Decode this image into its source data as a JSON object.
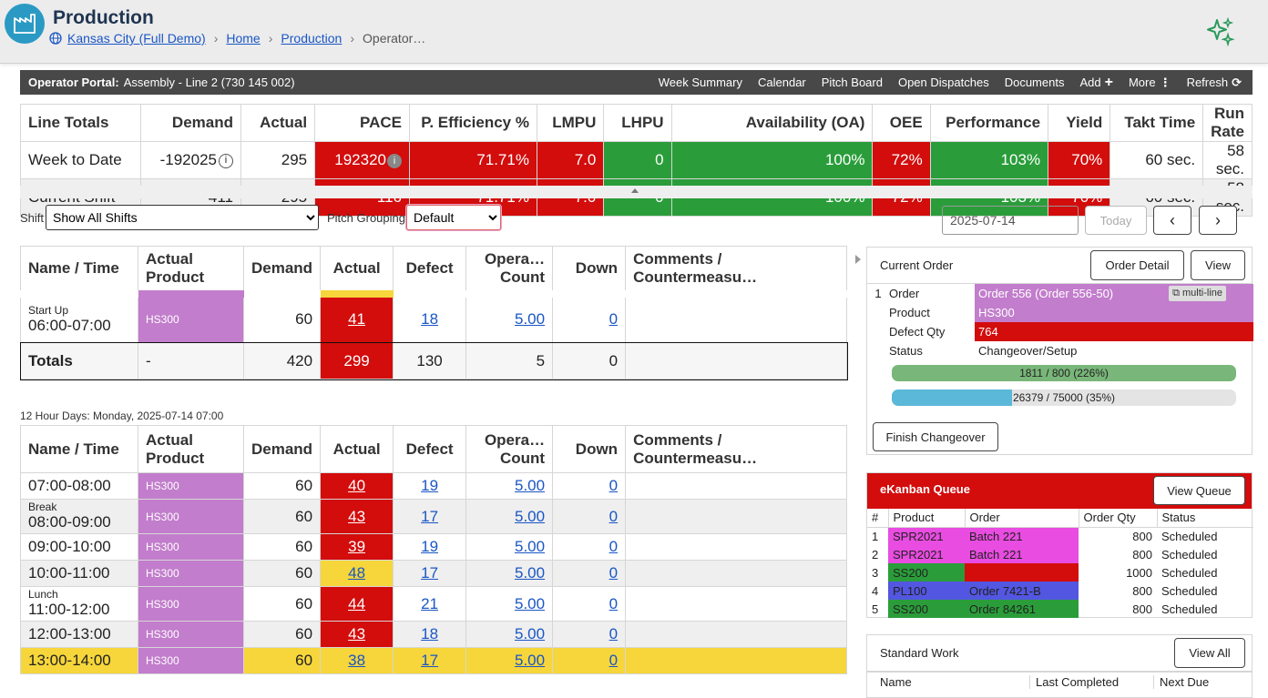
{
  "header": {
    "title": "Production",
    "breadcrumb": {
      "site": "Kansas City (Full Demo)",
      "home": "Home",
      "production": "Production",
      "current": "Operator…"
    }
  },
  "operator_bar": {
    "label": "Operator Portal:",
    "line": "Assembly - Line 2 (730 145 002)",
    "nav": {
      "week_summary": "Week Summary",
      "calendar": "Calendar",
      "pitch_board": "Pitch Board",
      "open_dispatches": "Open Dispatches",
      "documents": "Documents",
      "add": "Add",
      "more": "More",
      "refresh": "Refresh"
    }
  },
  "totals": {
    "headers": [
      "Line Totals",
      "Demand",
      "Actual",
      "PACE",
      "P. Efficiency %",
      "LMPU",
      "LHPU",
      "Availability (OA)",
      "OEE",
      "Performance",
      "Yield",
      "Takt Time",
      "Run Rate"
    ],
    "rows": [
      [
        "Week to Date",
        "-192025",
        "295",
        "192320",
        "71.71%",
        "7.0",
        "0",
        "100%",
        "72%",
        "103%",
        "70%",
        "60 sec.",
        "58 sec."
      ],
      [
        "Current Shift",
        "411",
        "295",
        "-116",
        "71.71%",
        "7.0",
        "0",
        "100%",
        "72%",
        "103%",
        "70%",
        "60 sec.",
        "58 sec."
      ]
    ]
  },
  "filters": {
    "shift_label": "Shift",
    "shift_value": "Show All Shifts",
    "pitch_label": "Pitch Grouping",
    "pitch_value": "Default",
    "date": "2025-07-14",
    "today": "Today"
  },
  "grid_headers": {
    "name": "Name / Time",
    "product": "Actual Product",
    "demand": "Demand",
    "actual": "Actual",
    "defect": "Defect",
    "operators": "Opera… Count",
    "down": "Down",
    "comments": "Comments / Countermeasu…"
  },
  "prev_shift": {
    "row": {
      "label": "Start Up",
      "time": "06:00-07:00",
      "product": "HS300",
      "demand": "60",
      "actual": "41",
      "defect": "18",
      "operators": "5.00",
      "down": "0"
    },
    "totals": {
      "label": "Totals",
      "product": "-",
      "demand": "420",
      "actual": "299",
      "defect": "130",
      "operators": "5",
      "down": "0"
    }
  },
  "section_label": "12 Hour Days: Monday, 2025-07-14 07:00",
  "shift_rows": [
    {
      "label": "",
      "time": "07:00-08:00",
      "product": "HS300",
      "demand": "60",
      "actual": "40",
      "defect": "19",
      "operators": "5.00",
      "down": "0",
      "status": "red"
    },
    {
      "label": "Break",
      "time": "08:00-09:00",
      "product": "HS300",
      "demand": "60",
      "actual": "43",
      "defect": "17",
      "operators": "5.00",
      "down": "0",
      "status": "red"
    },
    {
      "label": "",
      "time": "09:00-10:00",
      "product": "HS300",
      "demand": "60",
      "actual": "39",
      "defect": "19",
      "operators": "5.00",
      "down": "0",
      "status": "red"
    },
    {
      "label": "",
      "time": "10:00-11:00",
      "product": "HS300",
      "demand": "60",
      "actual": "48",
      "defect": "17",
      "operators": "5.00",
      "down": "0",
      "status": "yellow"
    },
    {
      "label": "Lunch",
      "time": "11:00-12:00",
      "product": "HS300",
      "demand": "60",
      "actual": "44",
      "defect": "21",
      "operators": "5.00",
      "down": "0",
      "status": "red"
    },
    {
      "label": "",
      "time": "12:00-13:00",
      "product": "HS300",
      "demand": "60",
      "actual": "43",
      "defect": "18",
      "operators": "5.00",
      "down": "0",
      "status": "red"
    },
    {
      "label": "",
      "time": "13:00-14:00",
      "product": "HS300",
      "demand": "60",
      "actual": "38",
      "defect": "17",
      "operators": "5.00",
      "down": "0",
      "status": "current"
    }
  ],
  "current_order": {
    "title": "Current Order",
    "detail_btn": "Order Detail",
    "view_btn": "View",
    "index": "1",
    "order_label": "Order",
    "order_value": "Order 556 (Order 556-50)",
    "multiline": "multi-line",
    "product_label": "Product",
    "product_value": "HS300",
    "defect_label": "Defect Qty",
    "defect_value": "764",
    "status_label": "Status",
    "status_value": "Changeover/Setup",
    "bar1": {
      "text": "1811 / 800 (226%)",
      "fraction": 1.0
    },
    "bar2": {
      "text": "26379 / 75000 (35%)",
      "fraction": 0.35
    },
    "finish_btn": "Finish Changeover"
  },
  "kanban": {
    "title": "eKanban Queue",
    "view_btn": "View Queue",
    "headers": [
      "#",
      "Product",
      "Order",
      "Order Qty",
      "Status"
    ],
    "rows": [
      {
        "n": "1",
        "product": "SPR2021",
        "order": "Batch 221",
        "qty": "800",
        "status": "Scheduled",
        "color": "#e84ce0"
      },
      {
        "n": "2",
        "product": "SPR2021",
        "order": "Batch 221",
        "qty": "800",
        "status": "Scheduled",
        "color": "#e84ce0"
      },
      {
        "n": "3",
        "product": "SS200",
        "order": "",
        "qty": "1000",
        "status": "Scheduled",
        "color": "#2a9d3a",
        "order_color": "#d30c0c"
      },
      {
        "n": "4",
        "product": "PL100",
        "order": "Order 7421-B",
        "qty": "800",
        "status": "Scheduled",
        "color": "#5356e0"
      },
      {
        "n": "5",
        "product": "SS200",
        "order": "Order 84261",
        "qty": "800",
        "status": "Scheduled",
        "color": "#2a9d3a"
      }
    ]
  },
  "standard_work": {
    "title": "Standard Work",
    "view_btn": "View All",
    "headers": [
      "Name",
      "Last Completed",
      "Next Due"
    ]
  },
  "colors": {
    "red": "#d30c0c",
    "green": "#2a9d3a",
    "yellow": "#f6d63a",
    "purple": "#c27dcc",
    "brand": "#2a9ac4"
  }
}
